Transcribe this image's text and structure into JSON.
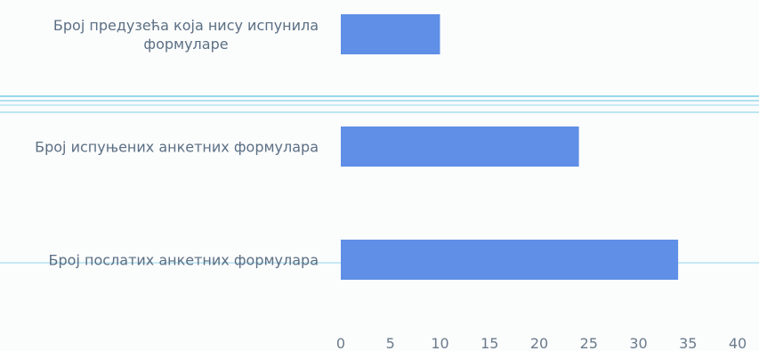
{
  "chart_data": {
    "type": "bar",
    "orientation": "horizontal",
    "categories": [
      [
        "Број предузећа која нису испунила",
        "формуларе"
      ],
      [
        "Број испуњених анкетних формулара"
      ],
      [
        "Број послатих анкетних формулара"
      ]
    ],
    "values": [
      10,
      24,
      34
    ],
    "xlim": [
      0,
      40
    ],
    "x_ticks": [
      "0",
      "5",
      "10",
      "15",
      "20",
      "25",
      "30",
      "35",
      "40"
    ],
    "grid": false,
    "bar_color": "#5f8fe6",
    "scan_line_color": "#7fd1ea"
  }
}
